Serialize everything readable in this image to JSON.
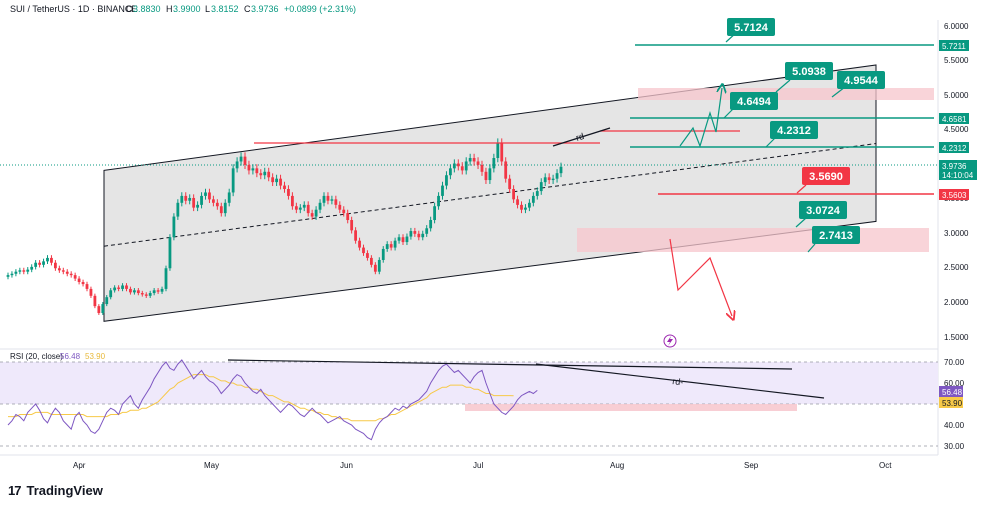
{
  "header": {
    "symbol": "SUI / TetherUS · 1D · BINANCE",
    "ohlc_o_label": "O",
    "ohlc_o": "3.8830",
    "ohlc_h_label": "H",
    "ohlc_h": "3.9900",
    "ohlc_l_label": "L",
    "ohlc_l": "3.8152",
    "ohlc_c_label": "C",
    "ohlc_c": "3.9736",
    "ohlc_change": "+0.0899 (+2.31%)"
  },
  "rsi_header": {
    "label": "RSI (20, close)",
    "rsi_value": "56.48",
    "ma_value": "53.90"
  },
  "price_axis": {
    "labels": [
      "6.0000",
      "5.5000",
      "5.0000",
      "4.5000",
      "4.0000",
      "3.5000",
      "3.0000",
      "2.5000",
      "2.0000",
      "1.5000"
    ],
    "tag_5_7211": "5.7211",
    "tag_4_6581": "4.6581",
    "tag_4_2312": "4.2312",
    "current_price": "3.9736",
    "countdown": "14:10:04",
    "tag_3_5603": "3.5603"
  },
  "rsi_axis": {
    "labels": [
      "70.00",
      "60.00",
      "40.00",
      "30.00"
    ],
    "rsi_tag": "56.48",
    "ma_tag": "53.90"
  },
  "time_axis": {
    "labels": [
      "Apr",
      "May",
      "Jun",
      "Jul",
      "Aug",
      "Sep",
      "Oct"
    ]
  },
  "levels": {
    "l_5_7124": "5.7124",
    "l_5_0938": "5.0938",
    "l_4_9544": "4.9544",
    "l_4_6494": "4.6494",
    "l_4_2312": "4.2312",
    "l_3_5690": "3.5690",
    "l_3_0724": "3.0724",
    "l_2_7413": "2.7413"
  },
  "annotations": {
    "price_rd": "rd-",
    "rsi_rd": "rd-"
  },
  "footer": {
    "brand": "TradingView",
    "logo_text": "17"
  },
  "colors": {
    "up": "#089981",
    "down": "#f23645",
    "teal_level": "#089981",
    "red_level": "#f23645",
    "channel_fill": "#e0e0e0",
    "zone_red": "#f7c5cc",
    "rsi_line": "#7e57c2",
    "rsi_ma": "#f7c948",
    "rsi_bg": "#efe9fb"
  },
  "chart_data": {
    "type": "candlestick",
    "symbol": "SUI / TetherUS",
    "timeframe": "1D",
    "last_close": 3.9736,
    "y_range": [
      1.5,
      6.0
    ],
    "x_axis_months": [
      "Apr",
      "May",
      "Jun",
      "Jul",
      "Aug",
      "Sep",
      "Oct"
    ],
    "close_series": [
      2.4,
      2.42,
      2.45,
      2.47,
      2.45,
      2.48,
      2.52,
      2.58,
      2.55,
      2.6,
      2.65,
      2.58,
      2.5,
      2.47,
      2.45,
      2.42,
      2.4,
      2.35,
      2.3,
      2.27,
      2.2,
      2.1,
      1.95,
      1.85,
      1.98,
      2.08,
      2.18,
      2.22,
      2.2,
      2.25,
      2.2,
      2.15,
      2.18,
      2.14,
      2.12,
      2.1,
      2.14,
      2.18,
      2.16,
      2.2,
      2.5,
      2.95,
      3.25,
      3.45,
      3.55,
      3.48,
      3.52,
      3.38,
      3.42,
      3.55,
      3.6,
      3.5,
      3.45,
      3.4,
      3.3,
      3.45,
      3.6,
      3.95,
      4.05,
      4.12,
      4.0,
      3.92,
      3.95,
      3.88,
      3.85,
      3.9,
      3.82,
      3.75,
      3.8,
      3.7,
      3.65,
      3.55,
      3.4,
      3.35,
      3.38,
      3.42,
      3.3,
      3.25,
      3.35,
      3.45,
      3.55,
      3.48,
      3.5,
      3.42,
      3.35,
      3.3,
      3.2,
      3.05,
      2.9,
      2.8,
      2.72,
      2.65,
      2.55,
      2.45,
      2.62,
      2.78,
      2.85,
      2.8,
      2.9,
      2.95,
      2.88,
      2.96,
      3.04,
      3.0,
      2.95,
      3.0,
      3.08,
      3.2,
      3.4,
      3.55,
      3.7,
      3.85,
      3.95,
      4.02,
      3.98,
      3.92,
      4.05,
      4.1,
      4.05,
      4.0,
      3.9,
      3.78,
      3.95,
      4.1,
      4.32,
      4.05,
      3.8,
      3.65,
      3.5,
      3.42,
      3.35,
      3.38,
      3.45,
      3.55,
      3.62,
      3.75,
      3.82,
      3.78,
      3.8,
      3.88,
      3.9736
    ],
    "channel": {
      "upper": [
        [
          0,
          3.92
        ],
        [
          169,
          5.45
        ]
      ],
      "lower": [
        [
          0,
          1.73
        ],
        [
          169,
          3.18
        ]
      ],
      "mid": [
        [
          0,
          2.82
        ],
        [
          169,
          4.31
        ]
      ]
    },
    "rsi": {
      "label": "RSI (20, close)",
      "value": 56.48,
      "ma": 53.9,
      "levels": [
        70,
        50,
        30
      ],
      "values": [
        40,
        42,
        45,
        44,
        42,
        46,
        48,
        50,
        47,
        43,
        41,
        45,
        48,
        46,
        42,
        40,
        38,
        44,
        46,
        42,
        40,
        37,
        36,
        38,
        42,
        46,
        48,
        47,
        45,
        50,
        52,
        54,
        50,
        48,
        52,
        55,
        58,
        62,
        65,
        68,
        70,
        67,
        66,
        69,
        71,
        68,
        65,
        62,
        64,
        66,
        63,
        61,
        60,
        58,
        55,
        57,
        59,
        62,
        64,
        63,
        60,
        58,
        56,
        55,
        57,
        54,
        52,
        50,
        48,
        46,
        48,
        50,
        49,
        47,
        45,
        44,
        46,
        48,
        46,
        45,
        43,
        41,
        42,
        43,
        44,
        42,
        41,
        40,
        38,
        37,
        36,
        34,
        33,
        38,
        41,
        43,
        44,
        46,
        48,
        47,
        49,
        48,
        50,
        51,
        52,
        54,
        56,
        60,
        63,
        66,
        68,
        69,
        67,
        65,
        66,
        64,
        62,
        60,
        63,
        65,
        66,
        60,
        55,
        50,
        48,
        46,
        45,
        47,
        49,
        52,
        54,
        55,
        56,
        55,
        56.48
      ],
      "ma_values": [
        44,
        44,
        44,
        45,
        45,
        45,
        45,
        46,
        46,
        46,
        46,
        45,
        45,
        45,
        45,
        45,
        45,
        45,
        45,
        45,
        44,
        44,
        44,
        44,
        44,
        44,
        45,
        45,
        45,
        46,
        46,
        47,
        47,
        47,
        48,
        48,
        49,
        50,
        51,
        53,
        55,
        57,
        58,
        60,
        61,
        62,
        63,
        64,
        64,
        64,
        64,
        63,
        63,
        62,
        61,
        61,
        60,
        60,
        59,
        59,
        58,
        58,
        57,
        57,
        56,
        55,
        54,
        54,
        53,
        52,
        51,
        51,
        50,
        49,
        48,
        48,
        47,
        47,
        46,
        46,
        45,
        45,
        44,
        44,
        43,
        43,
        43,
        42,
        42,
        42,
        42,
        42,
        42,
        42,
        43,
        43,
        44,
        45,
        45,
        46,
        47,
        48,
        49,
        50,
        51,
        52,
        53,
        55,
        56,
        57,
        58,
        58,
        59,
        59,
        59,
        59,
        58,
        58,
        57,
        57,
        56,
        55,
        55,
        54,
        54,
        54,
        54,
        54,
        53.9
      ]
    }
  }
}
